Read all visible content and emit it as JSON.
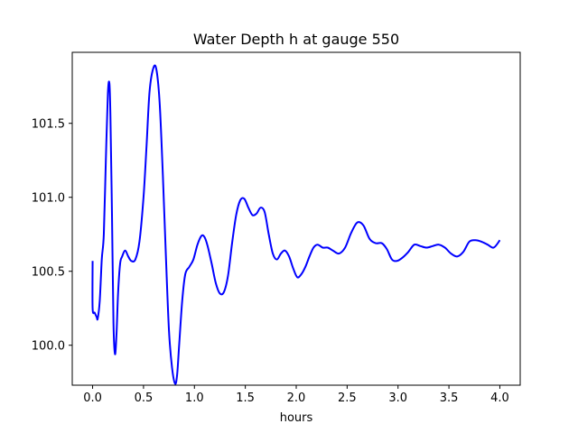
{
  "chart_data": {
    "type": "line",
    "title": "Water Depth h at gauge 550",
    "xlabel": "hours",
    "ylabel": "",
    "xlim": [
      -0.2,
      4.2
    ],
    "ylim": [
      99.73,
      101.98
    ],
    "xticks": [
      0.0,
      0.5,
      1.0,
      1.5,
      2.0,
      2.5,
      3.0,
      3.5,
      4.0
    ],
    "xtick_labels": [
      "0.0",
      "0.5",
      "1.0",
      "1.5",
      "2.0",
      "2.5",
      "3.0",
      "3.5",
      "4.0"
    ],
    "yticks": [
      100.0,
      100.5,
      101.0,
      101.5
    ],
    "ytick_labels": [
      "100.0",
      "100.5",
      "101.0",
      "101.5"
    ],
    "grid": false,
    "series": [
      {
        "color": "#0000ff",
        "x": [
          0.0,
          0.0,
          0.02,
          0.04,
          0.05,
          0.07,
          0.09,
          0.11,
          0.13,
          0.15,
          0.165,
          0.175,
          0.19,
          0.205,
          0.22,
          0.235,
          0.25,
          0.27,
          0.29,
          0.32,
          0.35,
          0.38,
          0.42,
          0.46,
          0.5,
          0.53,
          0.56,
          0.6,
          0.63,
          0.66,
          0.69,
          0.72,
          0.75,
          0.78,
          0.81,
          0.83,
          0.85,
          0.88,
          0.91,
          0.95,
          0.99,
          1.03,
          1.07,
          1.1,
          1.13,
          1.17,
          1.21,
          1.25,
          1.29,
          1.33,
          1.37,
          1.41,
          1.45,
          1.49,
          1.53,
          1.57,
          1.61,
          1.65,
          1.69,
          1.73,
          1.77,
          1.81,
          1.85,
          1.89,
          1.93,
          1.97,
          2.01,
          2.05,
          2.09,
          2.13,
          2.17,
          2.21,
          2.26,
          2.31,
          2.36,
          2.42,
          2.48,
          2.54,
          2.6,
          2.66,
          2.72,
          2.78,
          2.84,
          2.89,
          2.94,
          2.99,
          3.04,
          3.1,
          3.16,
          3.22,
          3.28,
          3.34,
          3.4,
          3.46,
          3.52,
          3.58,
          3.64,
          3.7,
          3.76,
          3.82,
          3.88,
          3.94,
          4.0
        ],
        "y": [
          100.57,
          100.25,
          100.22,
          100.19,
          100.18,
          100.3,
          100.58,
          100.75,
          101.25,
          101.7,
          101.77,
          101.55,
          100.9,
          100.15,
          99.94,
          100.08,
          100.35,
          100.55,
          100.6,
          100.64,
          100.6,
          100.57,
          100.58,
          100.7,
          101.0,
          101.35,
          101.72,
          101.88,
          101.85,
          101.62,
          101.15,
          100.6,
          100.1,
          99.85,
          99.74,
          99.8,
          100.0,
          100.3,
          100.48,
          100.53,
          100.58,
          100.68,
          100.74,
          100.73,
          100.67,
          100.55,
          100.42,
          100.35,
          100.36,
          100.47,
          100.69,
          100.88,
          100.98,
          100.99,
          100.93,
          100.88,
          100.89,
          100.93,
          100.9,
          100.75,
          100.62,
          100.58,
          100.62,
          100.64,
          100.6,
          100.52,
          100.46,
          100.48,
          100.53,
          100.6,
          100.66,
          100.68,
          100.66,
          100.66,
          100.64,
          100.62,
          100.66,
          100.76,
          100.83,
          100.81,
          100.72,
          100.69,
          100.69,
          100.65,
          100.58,
          100.57,
          100.59,
          100.63,
          100.68,
          100.67,
          100.66,
          100.67,
          100.68,
          100.66,
          100.62,
          100.6,
          100.63,
          100.7,
          100.71,
          100.7,
          100.68,
          100.66,
          100.71
        ]
      }
    ]
  }
}
